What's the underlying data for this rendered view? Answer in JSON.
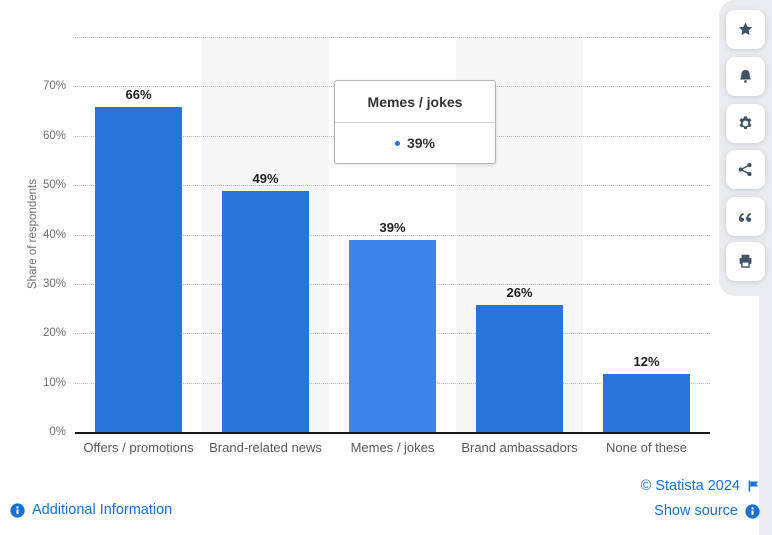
{
  "chart_data": {
    "type": "bar",
    "title": "",
    "categories": [
      "Offers / promotions",
      "Brand-related news",
      "Memes / jokes",
      "Brand ambassadors",
      "None of these"
    ],
    "values": [
      66,
      49,
      39,
      26,
      12
    ],
    "value_labels": [
      "66%",
      "49%",
      "39%",
      "26%",
      "12%"
    ],
    "xlabel": "",
    "ylabel": "Share of respondents",
    "ylim": [
      0,
      80
    ],
    "ytick_step": 10,
    "yticks_labeled": [
      "0%",
      "10%",
      "20%",
      "30%",
      "40%",
      "50%",
      "60%",
      "70%"
    ],
    "grid": "horizontal-dotted",
    "legend": "none",
    "highlighted_index": 2,
    "highlighted_category": "Memes / jokes"
  },
  "tooltip": {
    "title": "Memes / jokes",
    "value": "39%"
  },
  "sidebar": {
    "buttons": [
      {
        "label": "favorite",
        "icon": "star-icon"
      },
      {
        "label": "notifications",
        "icon": "bell-icon"
      },
      {
        "label": "settings",
        "icon": "gear-icon"
      },
      {
        "label": "share",
        "icon": "share-icon"
      },
      {
        "label": "cite",
        "icon": "quote-icon"
      },
      {
        "label": "print",
        "icon": "printer-icon"
      }
    ]
  },
  "footer": {
    "additional_information": "Additional Information",
    "copyright": "© Statista 2024",
    "show_source": "Show source"
  },
  "colors": {
    "bar": "#2a74d8",
    "bar_highlight": "#3c84e8",
    "link": "#1571d4",
    "icon": "#3e5268",
    "band": "#f6f6f7",
    "grid": "#bdbdbd",
    "axis": "#1a1a1a"
  }
}
